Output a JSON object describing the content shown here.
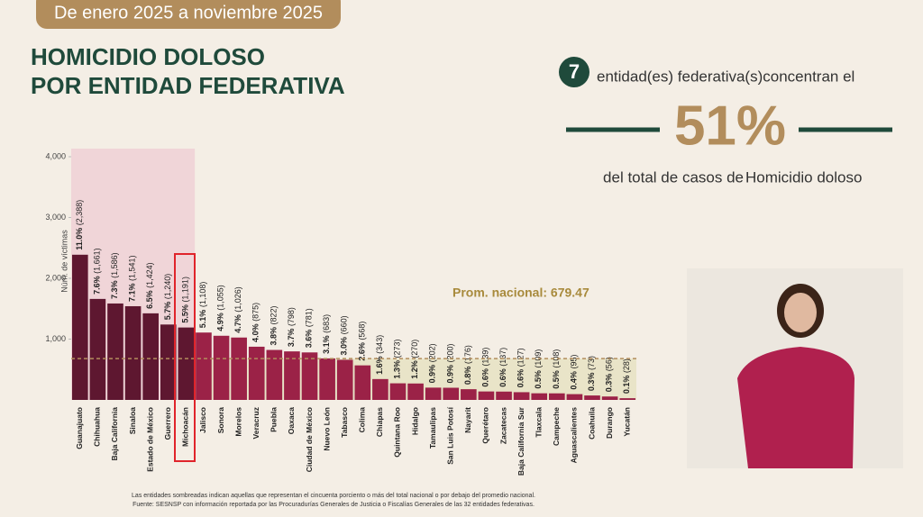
{
  "header": {
    "period": "De enero 2025 a noviembre 2025",
    "title_line1": "HOMICIDIO DOLOSO",
    "title_line2": "POR ENTIDAD FEDERATIVA"
  },
  "summary": {
    "count": 7,
    "text1": "entidad(es) federativa(s)concentran el",
    "share": "51%",
    "text2": "del total de casos de",
    "text3": "Homicidio doloso"
  },
  "chart_data": {
    "type": "bar",
    "y_label": "Núm. de víctimas",
    "categories": [
      "Guanajuato",
      "Chihuahua",
      "Baja California",
      "Sinaloa",
      "Estado de México",
      "Guerrero",
      "Michoacán",
      "Jalisco",
      "Sonora",
      "Morelos",
      "Veracruz",
      "Puebla",
      "Oaxaca",
      "Ciudad de México",
      "Nuevo León",
      "Tabasco",
      "Colima",
      "Chiapas",
      "Quintana Roo",
      "Hidalgo",
      "Tamaulipas",
      "San Luis Potosí",
      "Nayarit",
      "Querétaro",
      "Zacatecas",
      "Baja California Sur",
      "Tlaxcala",
      "Campeche",
      "Aguascalientes",
      "Coahuila",
      "Durango",
      "Yucatán"
    ],
    "values": [
      2388,
      1661,
      1586,
      1541,
      1424,
      1240,
      1191,
      1108,
      1055,
      1026,
      875,
      822,
      798,
      781,
      683,
      660,
      568,
      343,
      273,
      270,
      202,
      200,
      176,
      139,
      137,
      127,
      109,
      108,
      95,
      73,
      56,
      28
    ],
    "value_labels": [
      "(2,388)",
      "(1,661)",
      "(1,586)",
      "(1,541)",
      "(1,424)",
      "(1,240)",
      "(1,191)",
      "(1,108)",
      "(1,055)",
      "(1,026)",
      "(875)",
      "(822)",
      "(798)",
      "(781)",
      "(683)",
      "(660)",
      "(568)",
      "(343)",
      "(273)",
      "(270)",
      "(202)",
      "(200)",
      "(176)",
      "(139)",
      "(137)",
      "(127)",
      "(109)",
      "(108)",
      "(95)",
      "(73)",
      "(56)",
      "(28)"
    ],
    "pct_labels": [
      "11.0%",
      "7.6%",
      "7.3%",
      "7.1%",
      "6.5%",
      "5.7%",
      "5.5%",
      "5.1%",
      "4.9%",
      "4.7%",
      "4.0%",
      "3.8%",
      "3.7%",
      "3.6%",
      "3.1%",
      "3.0%",
      "2.6%",
      "1.6%",
      "1.3%",
      "1.2%",
      "0.9%",
      "0.9%",
      "0.8%",
      "0.6%",
      "0.6%",
      "0.6%",
      "0.5%",
      "0.5%",
      "0.4%",
      "0.3%",
      "0.3%",
      "0.1%"
    ],
    "color": "#9b2247",
    "highlight_color": "#5e1730",
    "ylim": [
      0,
      4000
    ],
    "yticks": [
      {
        "value": 1000,
        "label": "1,000"
      },
      {
        "value": 2000,
        "label": "2,000"
      },
      {
        "value": 3000,
        "label": "3,000"
      },
      {
        "value": 4000,
        "label": "4,000"
      }
    ],
    "average": {
      "value": 679.47,
      "label": "Prom. nacional: 679.47"
    }
  },
  "footnotes": [
    "Las entidades sombreadas indican aquellas que representan el cincuenta porciento o más del total nacional o por debajo del promedio nacional.",
    "Fuente: SESNSP con información reportada por las Procuradurías Generales de Justicia o Fiscalías Generales de las 32 entidades federativas."
  ]
}
